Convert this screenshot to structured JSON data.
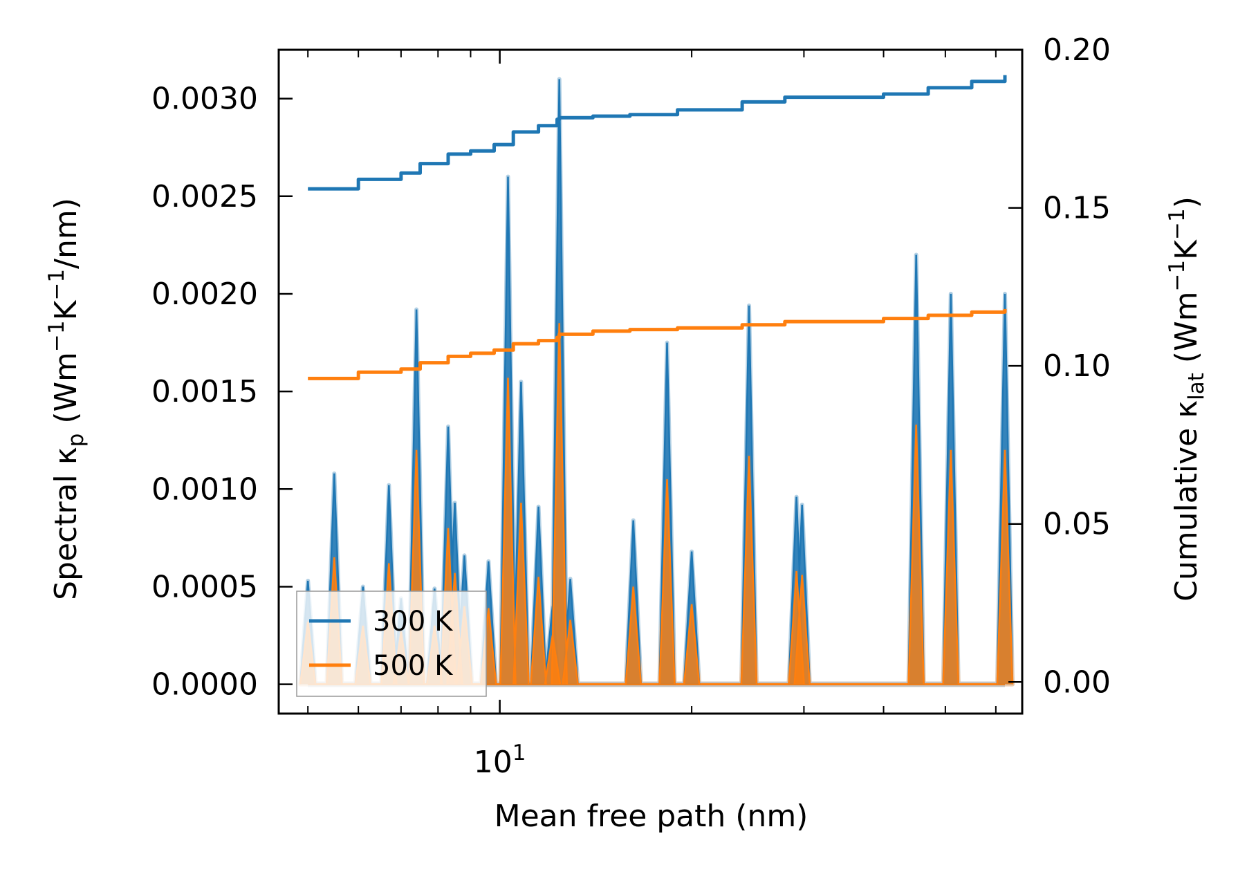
{
  "chart_data": {
    "type": "line",
    "xlabel": "Mean free path (nm)",
    "xscale": "log",
    "xlim": [
      4.5,
      66
    ],
    "x_major_tick_labels": [
      {
        "value": 10,
        "base": "10",
        "exp": "1"
      }
    ],
    "x_minor_ticks": [
      5,
      6,
      7,
      8,
      9,
      20,
      30,
      40,
      50,
      60
    ],
    "ylabel_left": {
      "prefix": "Spectral κ",
      "sub": "p",
      "mid": " (Wm",
      "sup1": "−1",
      "mid2": "K",
      "sup2": "−1",
      "suffix": "/nm)"
    },
    "ylim_left": [
      -0.00015,
      0.00325
    ],
    "yticks_left": [
      0.0,
      0.0005,
      0.001,
      0.0015,
      0.002,
      0.0025,
      0.003
    ],
    "yticklabels_left": [
      "0.0000",
      "0.0005",
      "0.0010",
      "0.0015",
      "0.0020",
      "0.0025",
      "0.0030"
    ],
    "ylabel_right": {
      "prefix": "Cumulative κ",
      "sub": "lat",
      "mid": " (Wm",
      "sup1": "−1",
      "mid2": "K",
      "sup2": "−1",
      "suffix": ")"
    },
    "ylim_right": [
      -0.01,
      0.2
    ],
    "yticks_right": [
      0.0,
      0.05,
      0.1,
      0.15,
      0.2
    ],
    "yticklabels_right": [
      "0.00",
      "0.05",
      "0.10",
      "0.15",
      "0.20"
    ],
    "legend": {
      "position": "lower-left",
      "entries": [
        "300 K",
        "500 K"
      ]
    },
    "colors": {
      "s300": "#1f77b4",
      "s500": "#ff7f0e",
      "band300": "#a6c8e0",
      "band500": "#f5cba6",
      "axis": "#000000"
    },
    "series": [
      {
        "name": "300 K",
        "spectral_peaks": [
          [
            5.0,
            0.00053
          ],
          [
            5.5,
            0.00108
          ],
          [
            6.1,
            0.0005
          ],
          [
            6.7,
            0.00102
          ],
          [
            7.0,
            0.00044
          ],
          [
            7.4,
            0.00192
          ],
          [
            7.9,
            0.00049
          ],
          [
            8.3,
            0.00132
          ],
          [
            8.5,
            0.00093
          ],
          [
            8.8,
            0.00066
          ],
          [
            9.6,
            0.00063
          ],
          [
            10.3,
            0.0026
          ],
          [
            10.8,
            0.00155
          ],
          [
            11.5,
            0.00091
          ],
          [
            12.1,
            0.0004
          ],
          [
            12.9,
            0.00054
          ],
          [
            12.4,
            0.0031
          ],
          [
            16.2,
            0.00084
          ],
          [
            18.3,
            0.00175
          ],
          [
            20.0,
            0.00068
          ],
          [
            24.6,
            0.00194
          ],
          [
            29.2,
            0.00096
          ],
          [
            29.8,
            0.00092
          ],
          [
            45.0,
            0.0022
          ],
          [
            51.0,
            0.002
          ],
          [
            62.0,
            0.002
          ]
        ],
        "cumulative": [
          [
            5.0,
            0.156
          ],
          [
            6.0,
            0.159
          ],
          [
            7.0,
            0.161
          ],
          [
            7.5,
            0.164
          ],
          [
            8.3,
            0.167
          ],
          [
            9.0,
            0.168
          ],
          [
            9.8,
            0.17
          ],
          [
            10.5,
            0.174
          ],
          [
            11.5,
            0.176
          ],
          [
            12.3,
            0.178
          ],
          [
            12.4,
            0.1785
          ],
          [
            14.0,
            0.179
          ],
          [
            16.0,
            0.1795
          ],
          [
            19.0,
            0.181
          ],
          [
            24.0,
            0.1835
          ],
          [
            28.0,
            0.185
          ],
          [
            40.0,
            0.186
          ],
          [
            47.0,
            0.188
          ],
          [
            55.0,
            0.19
          ],
          [
            62.0,
            0.192
          ]
        ]
      },
      {
        "name": "500 K",
        "spectral_peaks": [
          [
            5.0,
            0.00032
          ],
          [
            5.5,
            0.00065
          ],
          [
            6.1,
            0.0003
          ],
          [
            6.7,
            0.00062
          ],
          [
            7.0,
            0.00027
          ],
          [
            7.4,
            0.0012
          ],
          [
            7.9,
            0.0003
          ],
          [
            8.3,
            0.0008
          ],
          [
            8.5,
            0.00057
          ],
          [
            8.8,
            0.0004
          ],
          [
            9.6,
            0.00039
          ],
          [
            10.3,
            0.00157
          ],
          [
            10.8,
            0.00093
          ],
          [
            11.5,
            0.00055
          ],
          [
            12.1,
            0.00025
          ],
          [
            12.9,
            0.00033
          ],
          [
            12.4,
            0.00185
          ],
          [
            16.2,
            0.0005
          ],
          [
            18.3,
            0.00105
          ],
          [
            20.0,
            0.00041
          ],
          [
            24.6,
            0.00117
          ],
          [
            29.2,
            0.00058
          ],
          [
            29.8,
            0.00056
          ],
          [
            45.0,
            0.00133
          ],
          [
            51.0,
            0.0012
          ],
          [
            62.0,
            0.0012
          ]
        ],
        "cumulative": [
          [
            5.0,
            0.096
          ],
          [
            6.0,
            0.098
          ],
          [
            7.0,
            0.099
          ],
          [
            7.5,
            0.101
          ],
          [
            8.3,
            0.103
          ],
          [
            9.0,
            0.104
          ],
          [
            9.8,
            0.105
          ],
          [
            10.5,
            0.107
          ],
          [
            11.5,
            0.108
          ],
          [
            12.3,
            0.109
          ],
          [
            12.4,
            0.11
          ],
          [
            14.0,
            0.111
          ],
          [
            16.0,
            0.1115
          ],
          [
            19.0,
            0.112
          ],
          [
            24.0,
            0.113
          ],
          [
            28.0,
            0.114
          ],
          [
            40.0,
            0.115
          ],
          [
            47.0,
            0.116
          ],
          [
            55.0,
            0.117
          ],
          [
            62.0,
            0.118
          ]
        ]
      }
    ]
  }
}
